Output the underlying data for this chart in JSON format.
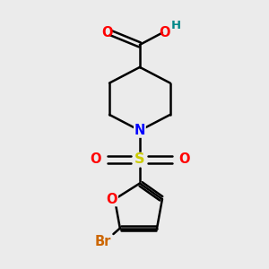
{
  "bg_color": "#ebebeb",
  "bond_color": "#000000",
  "bond_width": 1.8,
  "atom_colors": {
    "O": "#ff0000",
    "N": "#0000ff",
    "S": "#cccc00",
    "Br": "#cc6600",
    "H": "#008888",
    "C": "#000000"
  },
  "font_size": 9.5
}
